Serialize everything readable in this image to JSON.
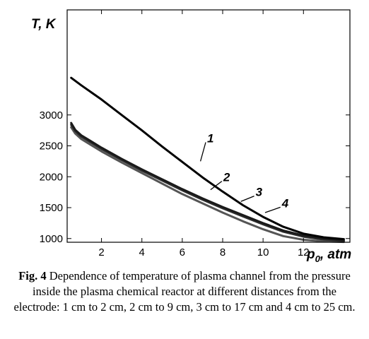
{
  "chart_data": {
    "type": "line",
    "xlabel": "p",
    "xlabel_sub": "0",
    "xlabel_unit": ", atm",
    "ylabel": "T, K",
    "xlim": [
      0.3,
      14.3
    ],
    "ylim": [
      940,
      4700
    ],
    "x_ticks": [
      2,
      4,
      6,
      8,
      10,
      12
    ],
    "y_ticks": [
      1000,
      1500,
      2000,
      2500,
      3000
    ],
    "series": [
      {
        "name": "1",
        "color": "#000000",
        "width": 3,
        "x": [
          0.5,
          1.0,
          2.0,
          3.0,
          4.0,
          5.0,
          6.0,
          7.0,
          8.0,
          9.0,
          10.0,
          11.0,
          12.0,
          13.0,
          14.0
        ],
        "y": [
          3600,
          3480,
          3250,
          3000,
          2750,
          2490,
          2240,
          1990,
          1760,
          1540,
          1350,
          1190,
          1080,
          1020,
          990
        ]
      },
      {
        "name": "2",
        "color": "#1a1a1a",
        "width": 3,
        "x": [
          0.5,
          0.7,
          1.0,
          2.0,
          3.0,
          4.0,
          5.0,
          6.0,
          7.0,
          8.0,
          9.0,
          10.0,
          11.0,
          12.0,
          13.0,
          14.0
        ],
        "y": [
          2870,
          2760,
          2670,
          2470,
          2290,
          2120,
          1960,
          1800,
          1650,
          1510,
          1380,
          1250,
          1130,
          1050,
          1000,
          970
        ]
      },
      {
        "name": "3",
        "color": "#2e2e2e",
        "width": 3,
        "x": [
          0.5,
          0.7,
          1.0,
          2.0,
          3.0,
          4.0,
          5.0,
          6.0,
          7.0,
          8.0,
          9.0,
          10.0,
          11.0,
          12.0,
          13.0,
          14.0
        ],
        "y": [
          2840,
          2740,
          2650,
          2450,
          2270,
          2100,
          1940,
          1780,
          1630,
          1490,
          1360,
          1230,
          1110,
          1030,
          985,
          960
        ]
      },
      {
        "name": "4",
        "color": "#555555",
        "width": 3,
        "x": [
          0.5,
          0.7,
          1.0,
          2.0,
          3.0,
          4.0,
          5.0,
          6.0,
          7.0,
          8.0,
          9.0,
          10.0,
          11.0,
          12.0,
          13.0,
          14.0
        ],
        "y": [
          2800,
          2700,
          2610,
          2410,
          2230,
          2060,
          1890,
          1720,
          1570,
          1420,
          1280,
          1150,
          1040,
          980,
          955,
          945
        ]
      }
    ],
    "annotations": [
      {
        "text": "1",
        "x": 6.9,
        "y": 2250,
        "lx": 7.3,
        "ly": 2580
      },
      {
        "text": "2",
        "x": 7.4,
        "y": 1790,
        "lx": 8.1,
        "ly": 1950
      },
      {
        "text": "3",
        "x": 8.9,
        "y": 1600,
        "lx": 9.7,
        "ly": 1710
      },
      {
        "text": "4",
        "x": 10.1,
        "y": 1420,
        "lx": 11.0,
        "ly": 1530
      }
    ]
  },
  "caption": {
    "label": "Fig. 4",
    "text": " Dependence of temperature of plasma channel from the pressure inside the plasma chemical reactor at different distances from the electrode: 1 cm to 2 cm, 2 cm to 9 cm, 3 cm to 17 cm and 4 cm to 25 cm."
  }
}
